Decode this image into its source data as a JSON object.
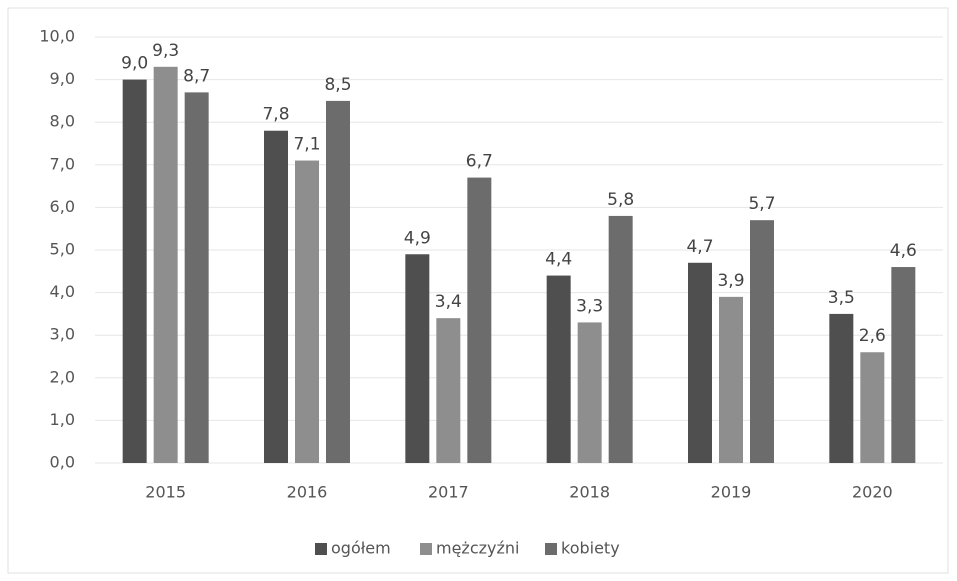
{
  "chart_data": {
    "type": "bar",
    "categories": [
      "2015",
      "2016",
      "2017",
      "2018",
      "2019",
      "2020"
    ],
    "series": [
      {
        "name": "ogółem",
        "color": "#4f4f4f",
        "values": [
          9.0,
          7.8,
          4.9,
          4.4,
          4.7,
          3.5
        ],
        "value_labels": [
          "9,0",
          "7,8",
          "4,9",
          "4,4",
          "4,7",
          "3,5"
        ]
      },
      {
        "name": "mężczyźni",
        "color": "#8e8e8e",
        "values": [
          9.3,
          7.1,
          3.4,
          3.3,
          3.9,
          2.6
        ],
        "value_labels": [
          "9,3",
          "7,1",
          "3,4",
          "3,3",
          "3,9",
          "2,6"
        ]
      },
      {
        "name": "kobiety",
        "color": "#6c6c6c",
        "values": [
          8.7,
          8.5,
          6.7,
          5.8,
          5.7,
          4.6
        ],
        "value_labels": [
          "8,7",
          "8,5",
          "6,7",
          "5,8",
          "5,7",
          "4,6"
        ]
      }
    ],
    "ylim": [
      0,
      10
    ],
    "yticks": [
      {
        "value": 0,
        "label": "0,0"
      },
      {
        "value": 1,
        "label": "1,0"
      },
      {
        "value": 2,
        "label": "2,0"
      },
      {
        "value": 3,
        "label": "3,0"
      },
      {
        "value": 4,
        "label": "4,0"
      },
      {
        "value": 5,
        "label": "5,0"
      },
      {
        "value": 6,
        "label": "6,0"
      },
      {
        "value": 7,
        "label": "7,0"
      },
      {
        "value": 8,
        "label": "8,0"
      },
      {
        "value": 9,
        "label": "9,0"
      },
      {
        "value": 10,
        "label": "10,0"
      }
    ],
    "grid": true,
    "legend": "bottom"
  }
}
